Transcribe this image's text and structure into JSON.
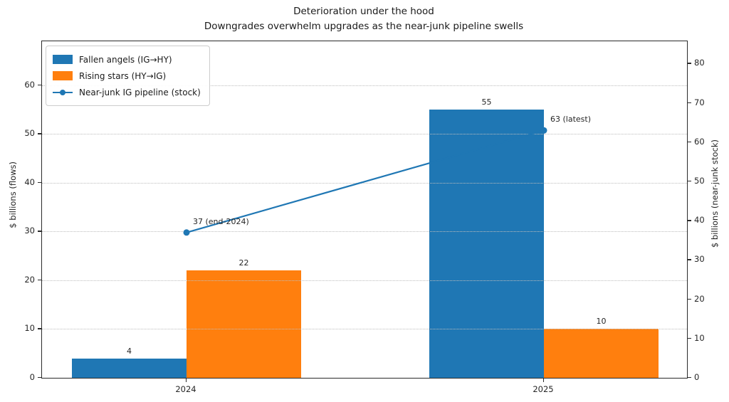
{
  "figure": {
    "title_line1": "Deterioration under the hood",
    "title_line2": "Downgrades overwhelm upgrades as the near-junk pipeline swells"
  },
  "chart_data": {
    "type": "bar",
    "subtype": "grouped bars with overlay line on secondary axis",
    "title": "Deterioration under the hood",
    "subtitle": "Downgrades overwhelm upgrades as the near-junk pipeline swells",
    "categories": [
      "2024",
      "2025"
    ],
    "series": [
      {
        "name": "Fallen angels (IG→HY)",
        "type": "bar",
        "axis": "left",
        "color": "#1f77b4",
        "values": [
          4,
          55
        ]
      },
      {
        "name": "Rising stars (HY→IG)",
        "type": "bar",
        "axis": "left",
        "color": "#ff7f0e",
        "values": [
          22,
          10
        ]
      },
      {
        "name": "Near-junk IG pipeline (stock)",
        "type": "line",
        "axis": "right",
        "color": "#1f77b4",
        "values": [
          37,
          63
        ],
        "point_annotations": [
          "37 (end-2024)",
          "63 (latest)"
        ]
      }
    ],
    "left_axis": {
      "label": "$ billions (flows)",
      "ticks": [
        0,
        10,
        20,
        30,
        40,
        50,
        60
      ],
      "ylim": [
        0,
        69
      ]
    },
    "right_axis": {
      "label": "$ billions (near-junk stock)",
      "ticks": [
        0,
        10,
        20,
        30,
        40,
        50,
        60,
        70,
        80
      ],
      "ylim": [
        0,
        85.7
      ]
    },
    "grid": "horizontal dotted at left-axis ticks",
    "legend_position": "upper left"
  }
}
